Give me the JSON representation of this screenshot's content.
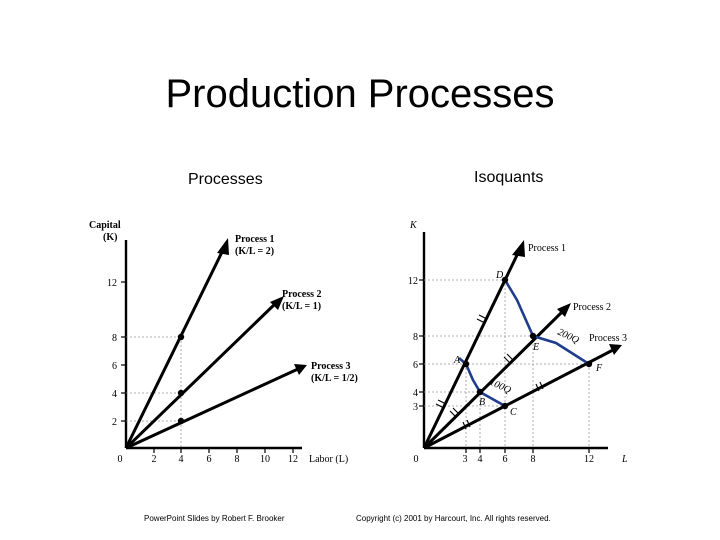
{
  "slide": {
    "title": "Production Processes"
  },
  "left_panel": {
    "heading": "Processes",
    "y_axis": {
      "label_line1": "Capital",
      "label_line2": "(K)",
      "ticks": [
        "2",
        "4",
        "6",
        "8",
        "12"
      ]
    },
    "x_axis": {
      "label": "Labor (L)",
      "ticks": [
        "0",
        "2",
        "4",
        "6",
        "8",
        "10",
        "12"
      ]
    },
    "rays": [
      {
        "name": "Process 1",
        "ratio": "(K/L = 2)",
        "slope": 2
      },
      {
        "name": "Process 2",
        "ratio": "(K/L = 1)",
        "slope": 1
      },
      {
        "name": "Process 3",
        "ratio": "(K/L = 1/2)",
        "slope": 0.5
      }
    ],
    "points": [
      {
        "L": 4,
        "K": 8
      },
      {
        "L": 4,
        "K": 4
      },
      {
        "L": 4,
        "K": 2
      }
    ]
  },
  "right_panel": {
    "heading": "Isoquants",
    "y_axis": {
      "label": "K",
      "ticks": [
        "3",
        "4",
        "6",
        "8",
        "12"
      ]
    },
    "x_axis": {
      "label": "L",
      "ticks": [
        "0",
        "3",
        "4",
        "6",
        "8",
        "12"
      ]
    },
    "rays": [
      {
        "name": "Process 1",
        "slope": 2
      },
      {
        "name": "Process 2",
        "slope": 1
      },
      {
        "name": "Process 3",
        "slope": 0.5
      }
    ],
    "points": [
      {
        "label": "A",
        "L": 3,
        "K": 6
      },
      {
        "label": "B",
        "L": 4,
        "K": 4
      },
      {
        "label": "C",
        "L": 6,
        "K": 3
      },
      {
        "label": "D",
        "L": 6,
        "K": 12
      },
      {
        "label": "E",
        "L": 8,
        "K": 8
      },
      {
        "label": "F",
        "L": 12,
        "K": 6
      }
    ],
    "isoquants": [
      {
        "label": "100Q",
        "points": [
          "A",
          "B",
          "C"
        ]
      },
      {
        "label": "200Q",
        "points": [
          "D",
          "E",
          "F"
        ]
      }
    ]
  },
  "footer": {
    "left": "PowerPoint Slides by Robert F. Brooker",
    "right": "Copyright (c) 2001 by Harcourt, Inc. All rights reserved."
  }
}
